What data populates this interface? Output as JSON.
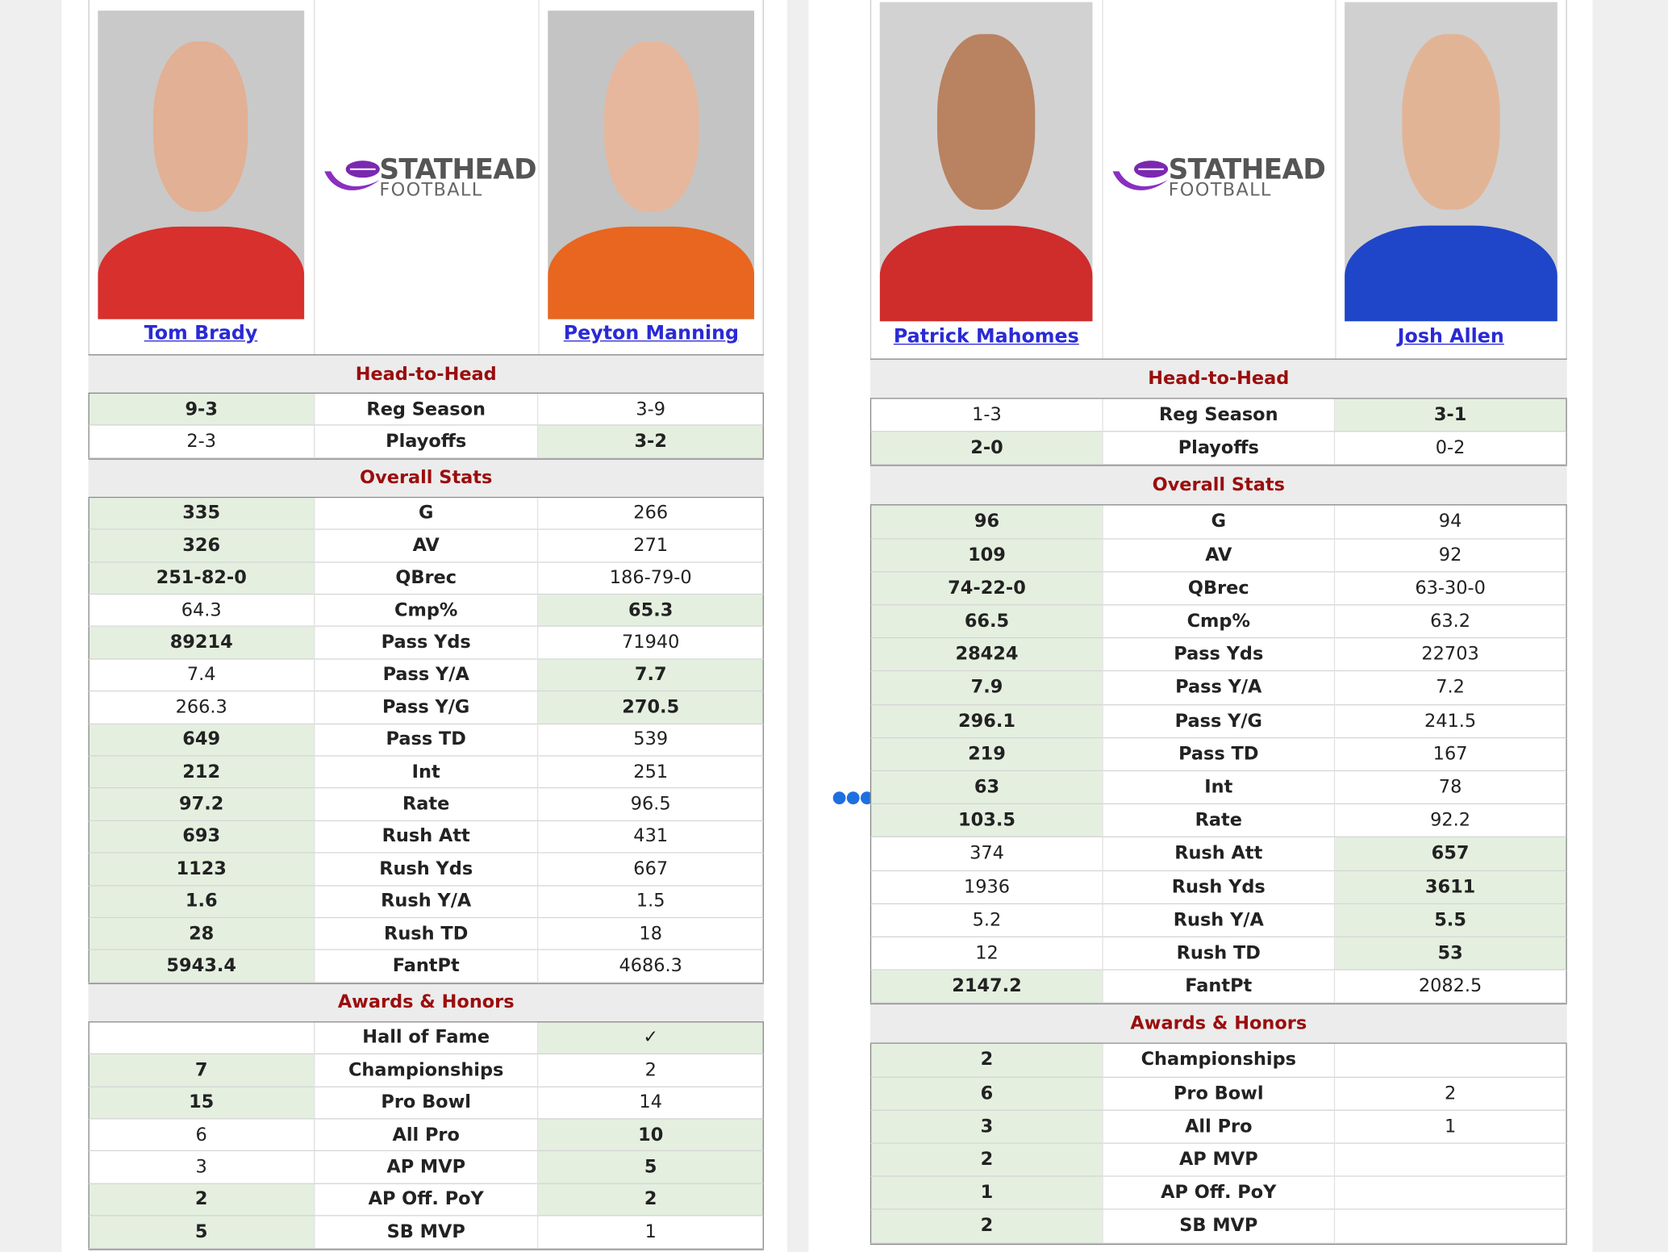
{
  "panels": [
    {
      "players": [
        "Tom Brady",
        "Peyton Manning"
      ],
      "logo": {
        "title": "STATHEAD",
        "subtitle": "FOOTBALL"
      },
      "sections": [
        {
          "title": "Head-to-Head",
          "rows": [
            {
              "left": "9-3",
              "label": "Reg Season",
              "right": "3-9",
              "win": "left"
            },
            {
              "left": "2-3",
              "label": "Playoffs",
              "right": "3-2",
              "win": "right"
            }
          ]
        },
        {
          "title": "Overall Stats",
          "rows": [
            {
              "left": 335,
              "label": "G",
              "right": 266,
              "win": "left"
            },
            {
              "left": 326,
              "label": "AV",
              "right": 271,
              "win": "left"
            },
            {
              "left": "251-82-0",
              "label": "QBrec",
              "right": "186-79-0",
              "win": "left"
            },
            {
              "left": 64.3,
              "label": "Cmp%",
              "right": 65.3,
              "win": "right"
            },
            {
              "left": 89214,
              "label": "Pass Yds",
              "right": 71940,
              "win": "left"
            },
            {
              "left": 7.4,
              "label": "Pass Y/A",
              "right": 7.7,
              "win": "right"
            },
            {
              "left": 266.3,
              "label": "Pass Y/G",
              "right": 270.5,
              "win": "right"
            },
            {
              "left": 649,
              "label": "Pass TD",
              "right": 539,
              "win": "left"
            },
            {
              "left": 212,
              "label": "Int",
              "right": 251,
              "win": "left"
            },
            {
              "left": 97.2,
              "label": "Rate",
              "right": 96.5,
              "win": "left"
            },
            {
              "left": 693,
              "label": "Rush Att",
              "right": 431,
              "win": "left"
            },
            {
              "left": 1123,
              "label": "Rush Yds",
              "right": 667,
              "win": "left"
            },
            {
              "left": 1.6,
              "label": "Rush Y/A",
              "right": 1.5,
              "win": "left"
            },
            {
              "left": 28,
              "label": "Rush TD",
              "right": 18,
              "win": "left"
            },
            {
              "left": 5943.4,
              "label": "FantPt",
              "right": 4686.3,
              "win": "left"
            }
          ]
        },
        {
          "title": "Awards & Honors",
          "rows": [
            {
              "left": null,
              "label": "Hall of Fame",
              "right": "✓",
              "win": "right"
            },
            {
              "left": 7,
              "label": "Championships",
              "right": 2,
              "win": "left"
            },
            {
              "left": 15,
              "label": "Pro Bowl",
              "right": 14,
              "win": "left"
            },
            {
              "left": 6,
              "label": "All Pro",
              "right": 10,
              "win": "right"
            },
            {
              "left": 3,
              "label": "AP MVP",
              "right": 5,
              "win": "right"
            },
            {
              "left": 2,
              "label": "AP Off. PoY",
              "right": 2,
              "win": "both"
            },
            {
              "left": 5,
              "label": "SB MVP",
              "right": 1,
              "win": "left"
            }
          ]
        }
      ]
    },
    {
      "players": [
        "Patrick Mahomes",
        "Josh Allen"
      ],
      "logo": {
        "title": "STATHEAD",
        "subtitle": "FOOTBALL"
      },
      "sections": [
        {
          "title": "Head-to-Head",
          "rows": [
            {
              "left": "1-3",
              "label": "Reg Season",
              "right": "3-1",
              "win": "right"
            },
            {
              "left": "2-0",
              "label": "Playoffs",
              "right": "0-2",
              "win": "left"
            }
          ]
        },
        {
          "title": "Overall Stats",
          "rows": [
            {
              "left": 96,
              "label": "G",
              "right": 94,
              "win": "left"
            },
            {
              "left": 109,
              "label": "AV",
              "right": 92,
              "win": "left"
            },
            {
              "left": "74-22-0",
              "label": "QBrec",
              "right": "63-30-0",
              "win": "left"
            },
            {
              "left": 66.5,
              "label": "Cmp%",
              "right": 63.2,
              "win": "left"
            },
            {
              "left": 28424,
              "label": "Pass Yds",
              "right": 22703,
              "win": "left"
            },
            {
              "left": 7.9,
              "label": "Pass Y/A",
              "right": 7.2,
              "win": "left"
            },
            {
              "left": 296.1,
              "label": "Pass Y/G",
              "right": 241.5,
              "win": "left"
            },
            {
              "left": 219,
              "label": "Pass TD",
              "right": 167,
              "win": "left"
            },
            {
              "left": 63,
              "label": "Int",
              "right": 78,
              "win": "left"
            },
            {
              "left": 103.5,
              "label": "Rate",
              "right": 92.2,
              "win": "left"
            },
            {
              "left": 374,
              "label": "Rush Att",
              "right": 657,
              "win": "right"
            },
            {
              "left": 1936,
              "label": "Rush Yds",
              "right": 3611,
              "win": "right"
            },
            {
              "left": 5.2,
              "label": "Rush Y/A",
              "right": 5.5,
              "win": "right"
            },
            {
              "left": 12,
              "label": "Rush TD",
              "right": 53,
              "win": "right"
            },
            {
              "left": 2147.2,
              "label": "FantPt",
              "right": 2082.5,
              "win": "left"
            }
          ]
        },
        {
          "title": "Awards & Honors",
          "rows": [
            {
              "left": 2,
              "label": "Championships",
              "right": null,
              "win": "left"
            },
            {
              "left": 6,
              "label": "Pro Bowl",
              "right": 2,
              "win": "left"
            },
            {
              "left": 3,
              "label": "All Pro",
              "right": 1,
              "win": "left"
            },
            {
              "left": 2,
              "label": "AP MVP",
              "right": null,
              "win": "left"
            },
            {
              "left": 1,
              "label": "AP Off. PoY",
              "right": null,
              "win": "left"
            },
            {
              "left": 2,
              "label": "SB MVP",
              "right": null,
              "win": "left"
            }
          ]
        }
      ]
    }
  ]
}
